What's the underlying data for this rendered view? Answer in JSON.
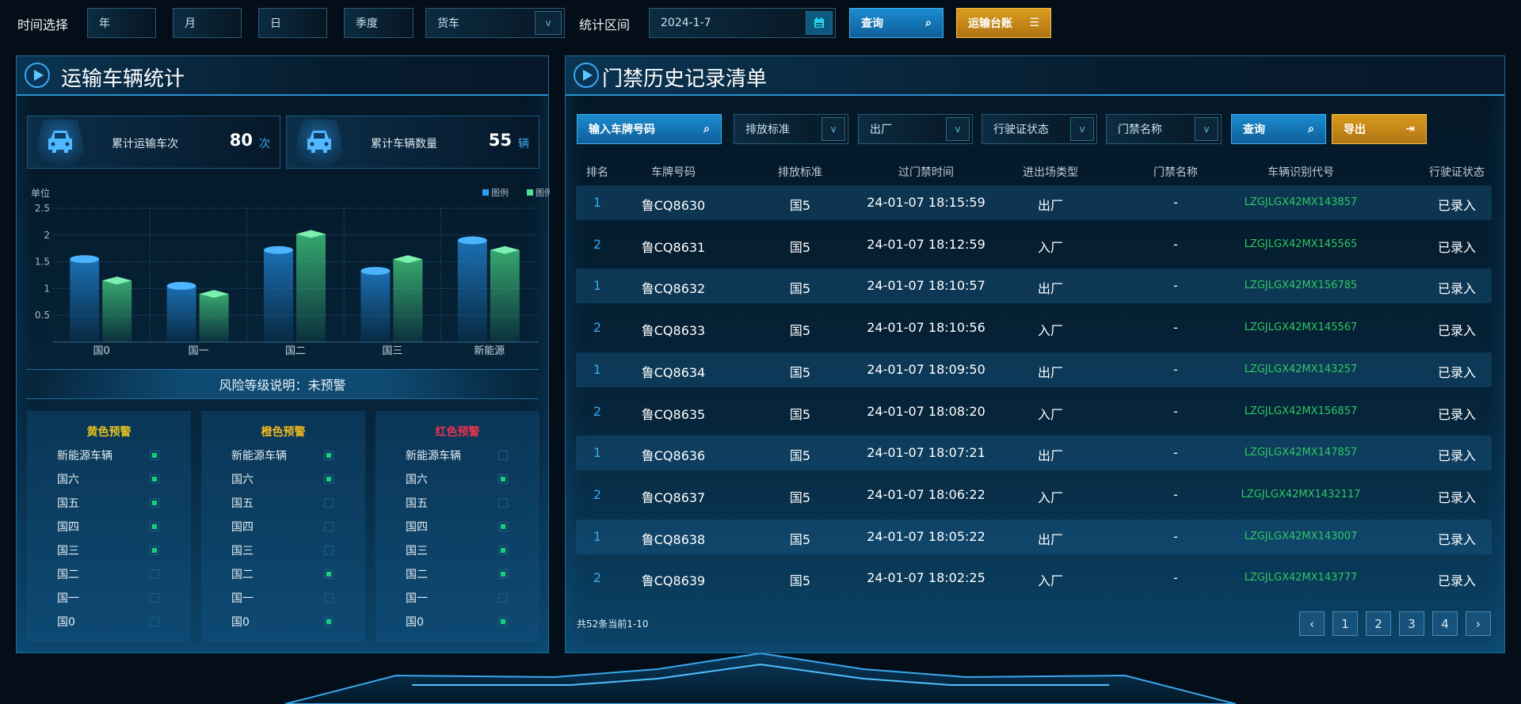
{
  "topbar": {
    "time_label": "时间选择",
    "year": "年",
    "month": "月",
    "day": "日",
    "quarter": "季度",
    "vehicle_type": "货车",
    "range_label": "统计区间",
    "date": "2024-1-7",
    "query_label": "查询",
    "ledger_label": "运输台账"
  },
  "left": {
    "title": "运输车辆统计",
    "stats": [
      {
        "label": "累计运输车次",
        "value": "80",
        "unit": "次"
      },
      {
        "label": "累计车辆数量",
        "value": "55",
        "unit": "辆"
      }
    ],
    "risk_text": "风险等级说明：未预警",
    "warnings": [
      {
        "title": "黄色预警",
        "color": "#e8c21e",
        "items": [
          [
            "新能源车辆",
            true
          ],
          [
            "国六",
            true
          ],
          [
            "国五",
            true
          ],
          [
            "国四",
            true
          ],
          [
            "国三",
            true
          ],
          [
            "国二",
            false
          ],
          [
            "国一",
            false
          ],
          [
            "国0",
            false
          ]
        ]
      },
      {
        "title": "橙色预警",
        "color": "#f0b820",
        "items": [
          [
            "新能源车辆",
            true
          ],
          [
            "国六",
            true
          ],
          [
            "国五",
            false
          ],
          [
            "国四",
            false
          ],
          [
            "国三",
            false
          ],
          [
            "国二",
            true
          ],
          [
            "国一",
            false
          ],
          [
            "国0",
            true
          ]
        ]
      },
      {
        "title": "红色预警",
        "color": "#e8344e",
        "items": [
          [
            "新能源车辆",
            false
          ],
          [
            "国六",
            true
          ],
          [
            "国五",
            false
          ],
          [
            "国四",
            true
          ],
          [
            "国三",
            true
          ],
          [
            "国二",
            true
          ],
          [
            "国一",
            false
          ],
          [
            "国0",
            true
          ]
        ]
      }
    ]
  },
  "chart_data": {
    "type": "bar",
    "ylabel": "单位",
    "categories": [
      "国0",
      "国一",
      "国二",
      "国三",
      "新能源"
    ],
    "series": [
      {
        "name": "图例",
        "color": "#2e9ef0",
        "values": [
          1.55,
          1.05,
          1.72,
          1.33,
          1.9
        ]
      },
      {
        "name": "图例",
        "color": "#4ee08e",
        "values": [
          1.15,
          0.9,
          2.02,
          1.55,
          1.72
        ]
      }
    ],
    "yticks": [
      "0.5",
      "1",
      "1.5",
      "2",
      "2.5"
    ],
    "ylim": [
      0,
      2.5
    ],
    "grid": true,
    "legend": "top-right"
  },
  "right": {
    "title": "门禁历史记录清单",
    "filters": {
      "plate_placeholder": "输入车牌号码",
      "emission": "排放标准",
      "direction": "出厂",
      "license": "行驶证状态",
      "gate": "门禁名称",
      "query": "查询",
      "export": "导出"
    },
    "columns": [
      "排名",
      "车牌号码",
      "排放标准",
      "过门禁时间",
      "进出场类型",
      "门禁名称",
      "车辆识别代号",
      "行驶证状态"
    ],
    "rows": [
      [
        "1",
        "鲁CQ8630",
        "国5",
        "24-01-07 18:15:59",
        "出厂",
        "-",
        "LZGJLGX42MX143857",
        "已录入"
      ],
      [
        "2",
        "鲁CQ8631",
        "国5",
        "24-01-07 18:12:59",
        "入厂",
        "-",
        "LZGJLGX42MX145565",
        "已录入"
      ],
      [
        "1",
        "鲁CQ8632",
        "国5",
        "24-01-07 18:10:57",
        "出厂",
        "-",
        "LZGJLGX42MX156785",
        "已录入"
      ],
      [
        "2",
        "鲁CQ8633",
        "国5",
        "24-01-07 18:10:56",
        "入厂",
        "-",
        "LZGJLGX42MX145567",
        "已录入"
      ],
      [
        "1",
        "鲁CQ8634",
        "国5",
        "24-01-07 18:09:50",
        "出厂",
        "-",
        "LZGJLGX42MX143257",
        "已录入"
      ],
      [
        "2",
        "鲁CQ8635",
        "国5",
        "24-01-07 18:08:20",
        "入厂",
        "-",
        "LZGJLGX42MX156857",
        "已录入"
      ],
      [
        "1",
        "鲁CQ8636",
        "国5",
        "24-01-07 18:07:21",
        "出厂",
        "-",
        "LZGJLGX42MX147857",
        "已录入"
      ],
      [
        "2",
        "鲁CQ8637",
        "国5",
        "24-01-07 18:06:22",
        "入厂",
        "-",
        "LZGJLGX42MX1432117",
        "已录入"
      ],
      [
        "1",
        "鲁CQ8638",
        "国5",
        "24-01-07 18:05:22",
        "出厂",
        "-",
        "LZGJLGX42MX143007",
        "已录入"
      ],
      [
        "2",
        "鲁CQ8639",
        "国5",
        "24-01-07 18:02:25",
        "入厂",
        "-",
        "LZGJLGX42MX143777",
        "已录入"
      ]
    ],
    "summary": "共52条当前1-10",
    "pages": [
      "‹",
      "1",
      "2",
      "3",
      "4",
      "›"
    ]
  }
}
